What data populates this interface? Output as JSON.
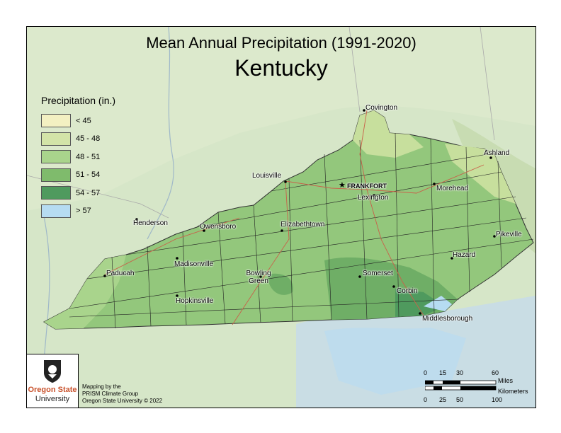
{
  "map": {
    "title": "Mean Annual Precipitation (1991-2020)",
    "subtitle": "Kentucky",
    "legend": {
      "title": "Precipitation (in.)",
      "items": [
        {
          "label": "< 45",
          "color": "#f3f0c2"
        },
        {
          "label": "45 - 48",
          "color": "#d3e4a8"
        },
        {
          "label": "48 - 51",
          "color": "#a9d48c"
        },
        {
          "label": "51 - 54",
          "color": "#7fbb6c"
        },
        {
          "label": "54 - 57",
          "color": "#4f9a5e"
        },
        {
          "label": "> 57",
          "color": "#b6dcf2"
        }
      ]
    },
    "cities": [
      {
        "name": "Covington",
        "capital": false
      },
      {
        "name": "Ashland",
        "capital": false
      },
      {
        "name": "Louisville",
        "capital": false
      },
      {
        "name": "FRANKFORT",
        "capital": true
      },
      {
        "name": "Lexington",
        "capital": false
      },
      {
        "name": "Morehead",
        "capital": false
      },
      {
        "name": "Henderson",
        "capital": false
      },
      {
        "name": "Owensboro",
        "capital": false
      },
      {
        "name": "Elizabethtown",
        "capital": false
      },
      {
        "name": "Pikeville",
        "capital": false
      },
      {
        "name": "Madisonville",
        "capital": false
      },
      {
        "name": "Hazard",
        "capital": false
      },
      {
        "name": "Paducah",
        "capital": false
      },
      {
        "name": "Bowling Green",
        "capital": false
      },
      {
        "name": "Somerset",
        "capital": false
      },
      {
        "name": "Corbin",
        "capital": false
      },
      {
        "name": "Hopkinsville",
        "capital": false
      },
      {
        "name": "Middlesborough",
        "capital": false
      }
    ],
    "credits": {
      "org_line1": "Oregon State",
      "org_line2": "University",
      "line1": "Mapping by the",
      "line2": "PRISM Climate Group",
      "line3": "Oregon State University © 2022"
    },
    "scalebar": {
      "miles_ticks": [
        "0",
        "15",
        "30",
        "60"
      ],
      "miles_label": "Miles",
      "km_label": "Kilometers",
      "km_ticks": [
        "0",
        "25",
        "50",
        "100"
      ]
    }
  }
}
